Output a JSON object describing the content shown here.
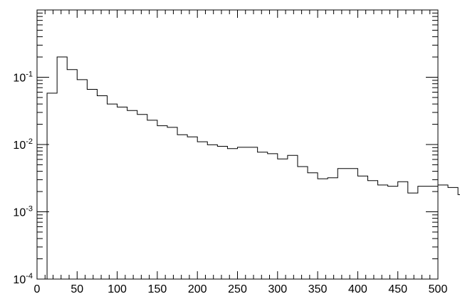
{
  "chart_data": {
    "type": "histogram",
    "title": "",
    "xlabel": "",
    "ylabel": "",
    "xlim": [
      0,
      500
    ],
    "ylim": [
      0.0001,
      1
    ],
    "yscale": "log",
    "grid": false,
    "bin_width": 12.5,
    "bin_edges_start": 0,
    "values": [
      0.0001,
      0.058,
      0.2,
      0.13,
      0.092,
      0.066,
      0.053,
      0.04,
      0.036,
      0.032,
      0.028,
      0.023,
      0.019,
      0.018,
      0.014,
      0.013,
      0.011,
      0.0099,
      0.0094,
      0.0087,
      0.0091,
      0.0091,
      0.0077,
      0.0073,
      0.0061,
      0.0069,
      0.0047,
      0.0038,
      0.0031,
      0.0032,
      0.0044,
      0.0044,
      0.0034,
      0.0029,
      0.0025,
      0.0024,
      0.0028,
      0.0019,
      0.0024,
      0.0024,
      0.0025,
      0.0023,
      0.0018,
      0.002
    ],
    "x_tick_labels": [
      "0",
      "50",
      "100",
      "150",
      "200",
      "250",
      "300",
      "350",
      "400",
      "450",
      "500"
    ],
    "y_tick_labels": [
      {
        "base": "10",
        "exp": "-4"
      },
      {
        "base": "10",
        "exp": "-3"
      },
      {
        "base": "10",
        "exp": "-2"
      },
      {
        "base": "10",
        "exp": "-1"
      }
    ]
  }
}
